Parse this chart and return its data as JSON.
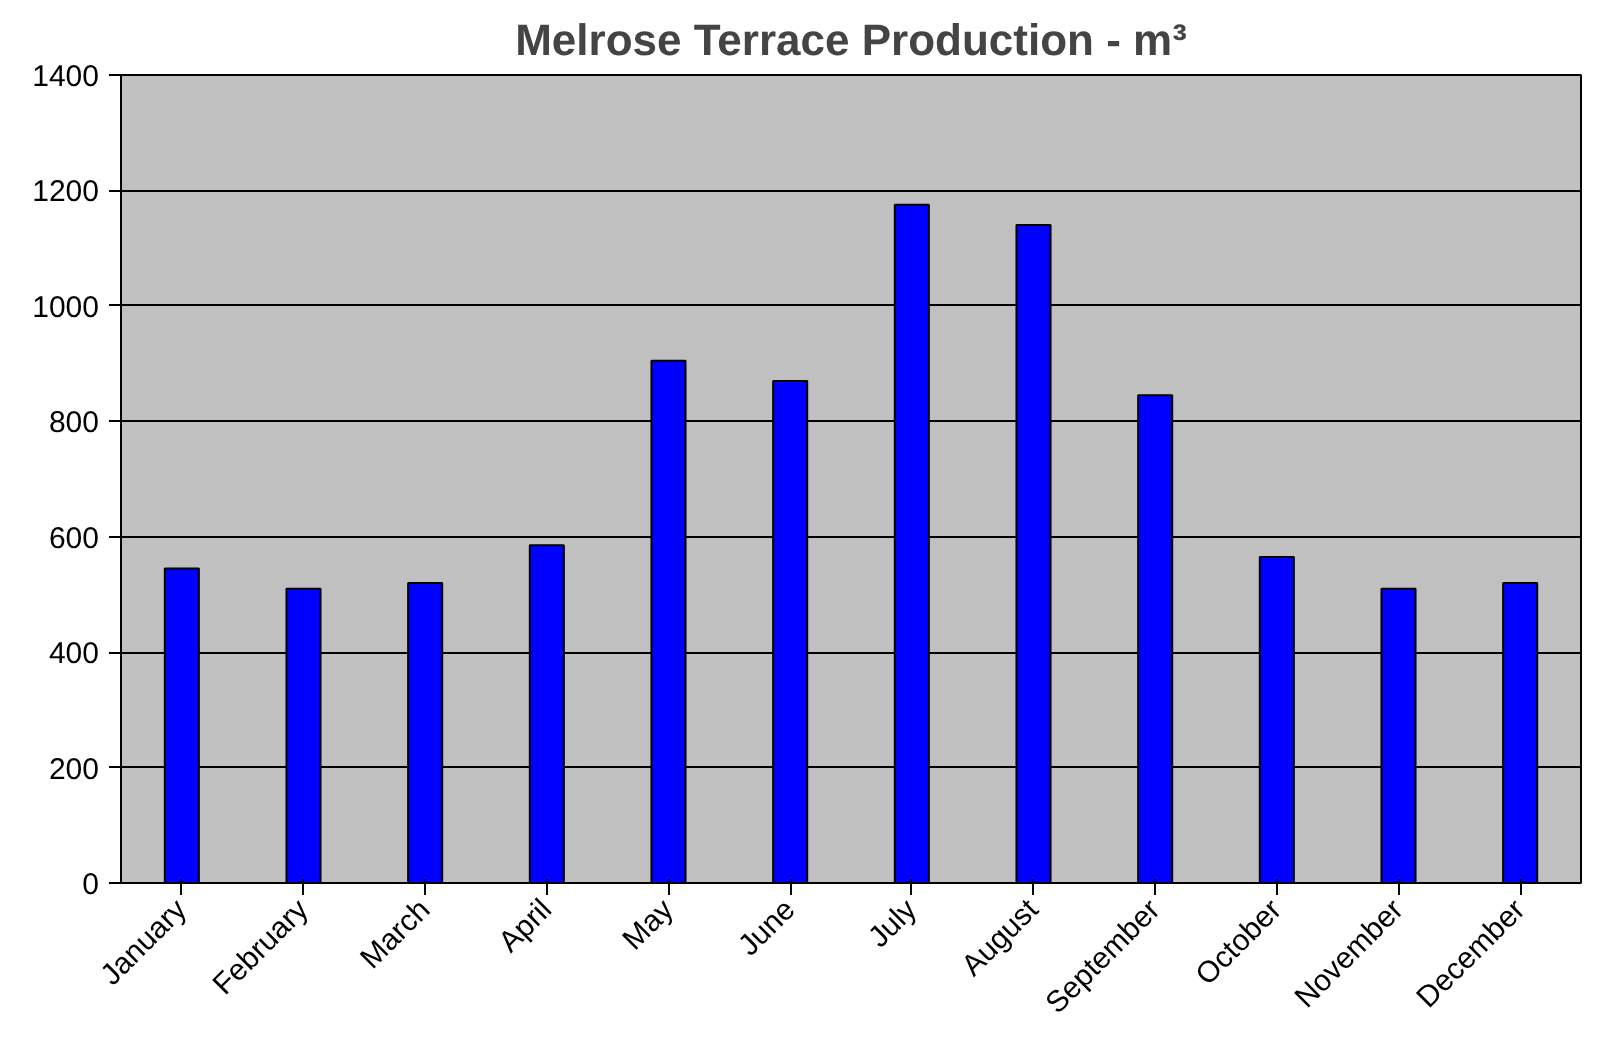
{
  "chart_data": {
    "type": "bar",
    "title": "Melrose Terrace Production - m³",
    "categories": [
      "January",
      "February",
      "March",
      "April",
      "May",
      "June",
      "July",
      "August",
      "September",
      "October",
      "November",
      "December"
    ],
    "values": [
      545,
      510,
      520,
      585,
      905,
      870,
      1175,
      1140,
      845,
      565,
      510,
      520
    ],
    "color": "#0000ff",
    "ylim": [
      0,
      1400
    ],
    "yticks": [
      0,
      200,
      400,
      600,
      800,
      1000,
      1200,
      1400
    ],
    "grid": "y"
  }
}
